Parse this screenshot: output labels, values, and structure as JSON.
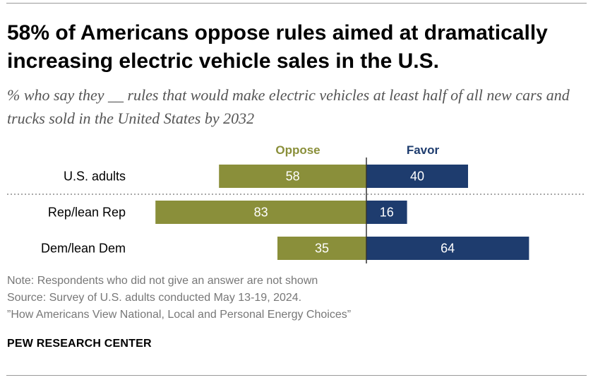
{
  "title": "58% of Americans oppose rules aimed at dramatically increasing electric vehicle sales in the U.S.",
  "subtitle": "% who say they __ rules that would make electric vehicles at least half of all new cars and trucks sold in the United States by 2032",
  "colors": {
    "oppose": "#8a8f3a",
    "favor": "#1e3c6e",
    "label": "#000000"
  },
  "chart_data": {
    "type": "bar",
    "orientation": "horizontal-diverging",
    "categories": [
      "U.S. adults",
      "Rep/lean Rep",
      "Dem/lean Dem"
    ],
    "series": [
      {
        "name": "Oppose",
        "values": [
          58,
          83,
          35
        ]
      },
      {
        "name": "Favor",
        "values": [
          40,
          16,
          64
        ]
      }
    ],
    "legend_position": "top"
  },
  "notes": {
    "note": "Note: Respondents who did not give an answer are not shown",
    "source": "Source: Survey of U.S. adults conducted May 13-19, 2024.",
    "report": "”How Americans View National, Local and Personal Energy Choices”"
  },
  "org": "PEW RESEARCH CENTER"
}
